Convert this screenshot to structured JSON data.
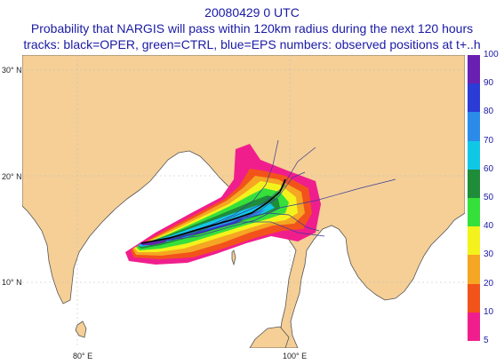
{
  "header": {
    "date_line": "20080429 0 UTC",
    "description_line": "Probability that NARGIS will pass within 120km radius during the next 120 hours",
    "legend_line": "tracks: black=OPER, green=CTRL, blue=EPS numbers: observed positions at t+..h"
  },
  "axes": {
    "lat_labels": [
      "30° N",
      "20° N",
      "10° N"
    ],
    "lon_labels": [
      "80° E",
      "100° E"
    ]
  },
  "colors": {
    "land": "#f5cf96",
    "sea": "#ffffff",
    "coast": "#555555",
    "title": "#1a1aa6"
  },
  "probability_scale": {
    "labels": [
      "100",
      "90",
      "80",
      "70",
      "60",
      "50",
      "40",
      "30",
      "20",
      "10",
      "5"
    ],
    "bands": [
      {
        "from": 90,
        "to": 100,
        "color": "#6a1fb3"
      },
      {
        "from": 80,
        "to": 90,
        "color": "#2b3bd6"
      },
      {
        "from": 70,
        "to": 80,
        "color": "#2a8ce8"
      },
      {
        "from": 60,
        "to": 70,
        "color": "#11c7e6"
      },
      {
        "from": 50,
        "to": 60,
        "color": "#1f8c3a"
      },
      {
        "from": 40,
        "to": 50,
        "color": "#36e03a"
      },
      {
        "from": 30,
        "to": 40,
        "color": "#f4f21c"
      },
      {
        "from": 20,
        "to": 30,
        "color": "#f5a623"
      },
      {
        "from": 10,
        "to": 20,
        "color": "#f2531a"
      },
      {
        "from": 5,
        "to": 10,
        "color": "#f01e8c"
      }
    ]
  }
}
